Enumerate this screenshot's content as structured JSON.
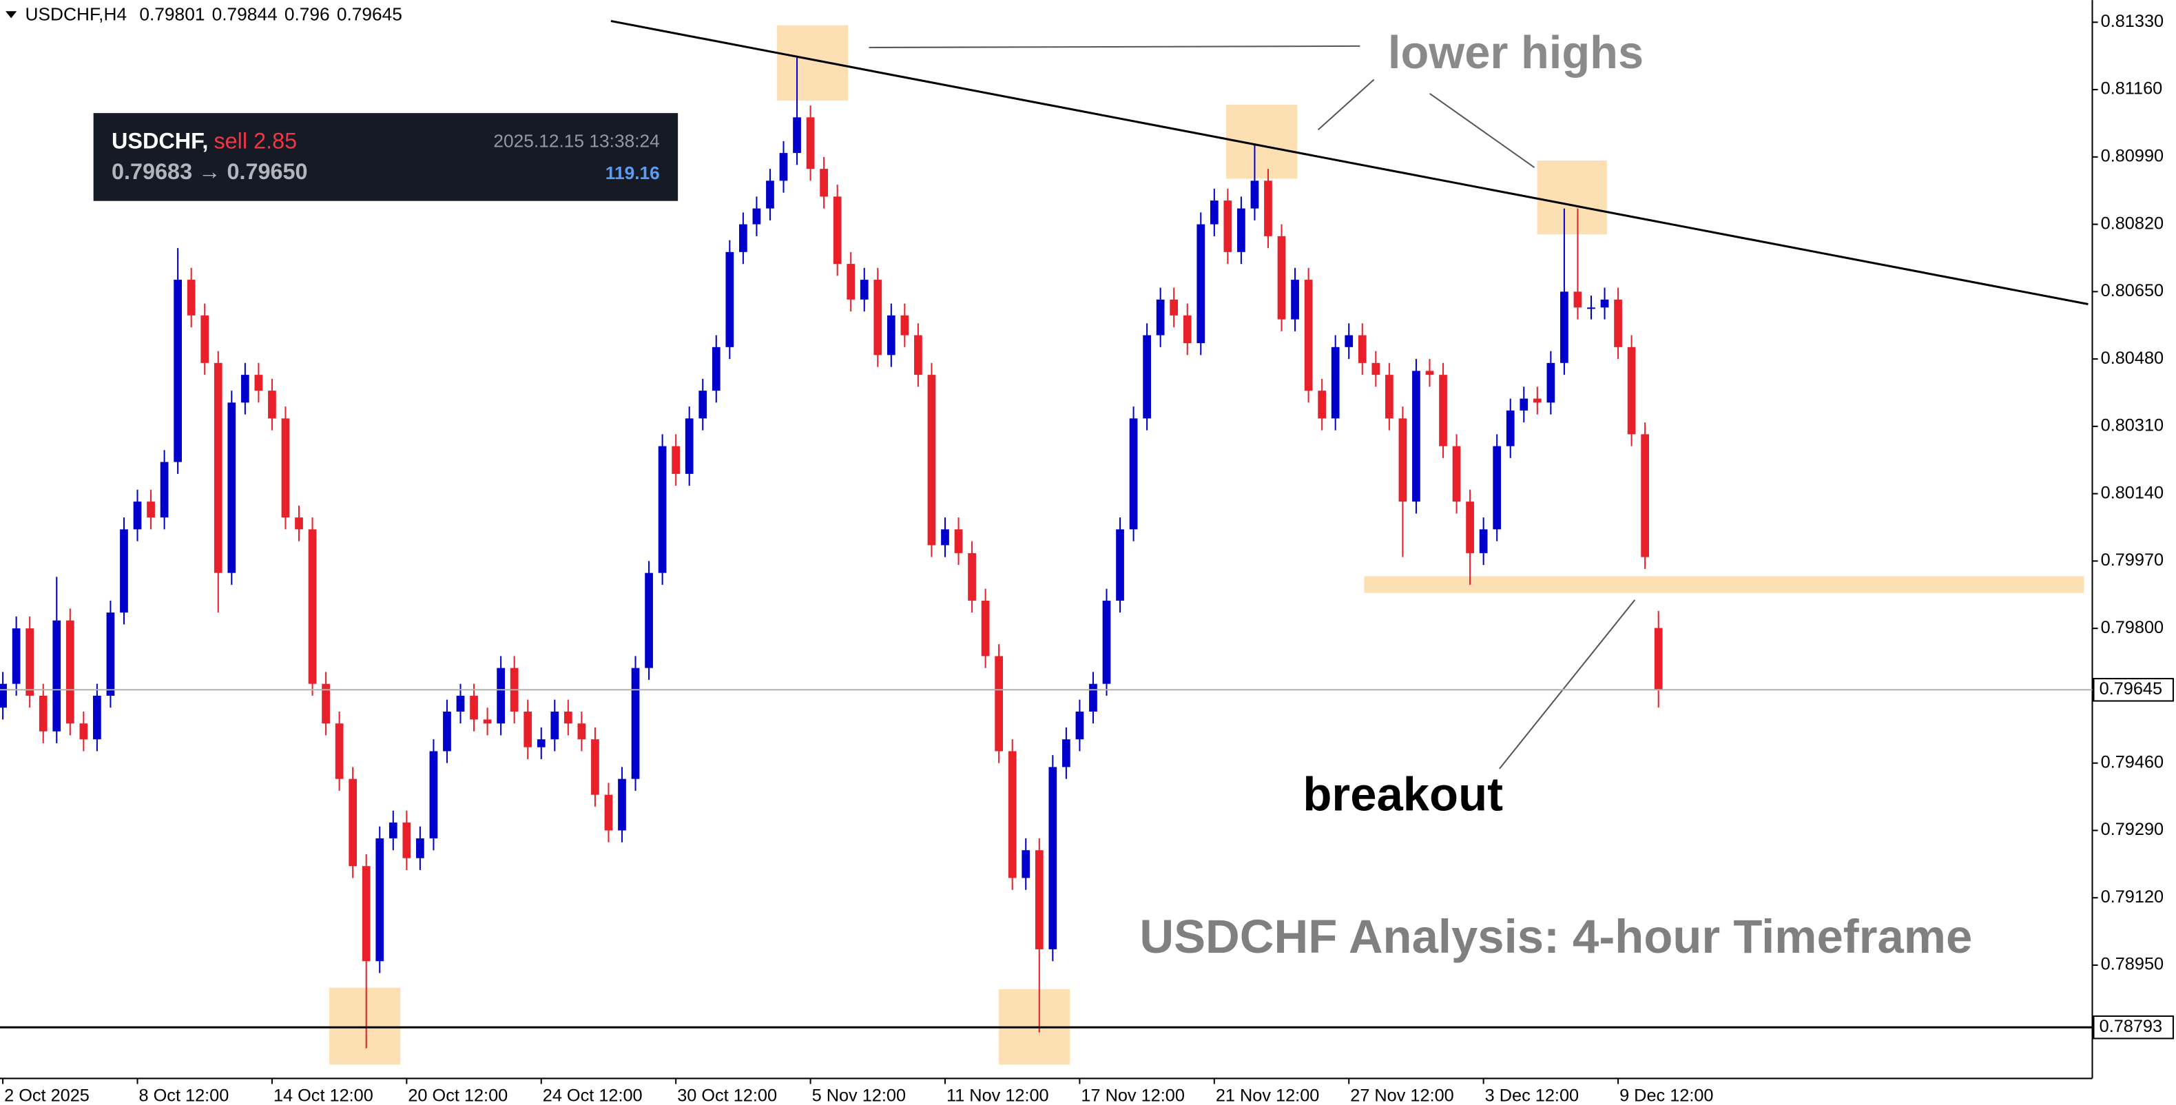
{
  "chart_data": {
    "type": "candlestick",
    "header": {
      "symbol": "USDCHF,H4"
    },
    "trade_panel": {
      "symbol": "USDCHF,",
      "side": "sell 2.85",
      "time": "2025.12.15 13:38:24",
      "prices": "0.79683 → 0.79650",
      "profit": "119.16"
    },
    "annotations": {
      "lower_highs": "lower highs",
      "breakout": "breakout",
      "title": "USDCHF Analysis: 4-hour Timeframe"
    },
    "up_color": "#0000cd",
    "down_color": "#e8202a",
    "support_level": 0.78793,
    "xlim": [
      -0.21,
      155.23
    ],
    "xticks": [
      {
        "value": 0,
        "label": "2 Oct 2025"
      },
      {
        "value": 10,
        "label": "8 Oct 12:00"
      },
      {
        "value": 20,
        "label": "14 Oct 12:00"
      },
      {
        "value": 30,
        "label": "20 Oct 12:00"
      },
      {
        "value": 40,
        "label": "24 Oct 12:00"
      },
      {
        "value": 50,
        "label": "30 Oct 12:00"
      },
      {
        "value": 60,
        "label": "5 Nov 12:00"
      },
      {
        "value": 70,
        "label": "11 Nov 12:00"
      },
      {
        "value": 80,
        "label": "17 Nov 12:00"
      },
      {
        "value": 90,
        "label": "21 Nov 12:00"
      },
      {
        "value": 100,
        "label": "27 Nov 12:00"
      },
      {
        "value": 110,
        "label": "3 Dec 12:00"
      },
      {
        "value": 120,
        "label": "9 Dec 12:00"
      }
    ],
    "ylim": [
      0.78664,
      0.81386
    ],
    "yticks": [
      {
        "value": 0.8133,
        "label": "0.81330"
      },
      {
        "value": 0.8116,
        "label": "0.81160"
      },
      {
        "value": 0.8099,
        "label": "0.80990"
      },
      {
        "value": 0.8082,
        "label": "0.80820"
      },
      {
        "value": 0.8065,
        "label": "0.80650"
      },
      {
        "value": 0.8048,
        "label": "0.80480"
      },
      {
        "value": 0.8031,
        "label": "0.80310"
      },
      {
        "value": 0.8014,
        "label": "0.80140"
      },
      {
        "value": 0.7997,
        "label": "0.79970"
      },
      {
        "value": 0.798,
        "label": "0.79800"
      },
      {
        "value": 0.7946,
        "label": "0.79460"
      },
      {
        "value": 0.7929,
        "label": "0.79290"
      },
      {
        "value": 0.7912,
        "label": "0.79120"
      },
      {
        "value": 0.7895,
        "label": "0.78950"
      }
    ],
    "open": [
      0.796,
      0.7966,
      0.798,
      0.7963,
      0.7954,
      0.7982,
      0.7956,
      0.7952,
      0.7963,
      0.7984,
      0.8005,
      0.8012,
      0.8008,
      0.8022,
      0.8068,
      0.8059,
      0.8047,
      0.7994,
      0.8037,
      0.8044,
      0.804,
      0.8033,
      0.8008,
      0.8005,
      0.7966,
      0.7956,
      0.7942,
      0.792,
      0.7896,
      0.7927,
      0.7931,
      0.7922,
      0.7927,
      0.7949,
      0.7959,
      0.7963,
      0.7957,
      0.7956,
      0.797,
      0.7959,
      0.795,
      0.7952,
      0.7959,
      0.7956,
      0.7952,
      0.7938,
      0.7929,
      0.7942,
      0.797,
      0.7994,
      0.8026,
      0.8019,
      0.8033,
      0.804,
      0.8051,
      0.8075,
      0.8082,
      0.8086,
      0.8093,
      0.81,
      0.8109,
      0.8096,
      0.8089,
      0.8072,
      0.8063,
      0.8068,
      0.8049,
      0.8059,
      0.8054,
      0.8044,
      0.8001,
      0.8005,
      0.7999,
      0.7987,
      0.7973,
      0.7949,
      0.7917,
      0.7924,
      0.7899,
      0.7945,
      0.7952,
      0.7959,
      0.7966,
      0.7987,
      0.8005,
      0.8033,
      0.8054,
      0.8063,
      0.8059,
      0.8052,
      0.8082,
      0.8088,
      0.8075,
      0.8086,
      0.8093,
      0.8079,
      0.8058,
      0.8068,
      0.804,
      0.8033,
      0.8051,
      0.8054,
      0.8047,
      0.8044,
      0.8033,
      0.8012,
      0.8045,
      0.8044,
      0.8026,
      0.8012,
      0.7999,
      0.8005,
      0.8026,
      0.8035,
      0.8038,
      0.8037,
      0.8047,
      0.8065,
      0.8061,
      0.8061,
      0.8063,
      0.8051,
      0.8029,
      0.79801
    ],
    "high": [
      0.7969,
      0.7983,
      0.7983,
      0.7966,
      0.7993,
      0.7985,
      0.7959,
      0.7966,
      0.7987,
      0.8008,
      0.8015,
      0.8015,
      0.8025,
      0.8076,
      0.8071,
      0.8062,
      0.805,
      0.804,
      0.8047,
      0.8047,
      0.8043,
      0.8036,
      0.8011,
      0.8008,
      0.7969,
      0.7959,
      0.7945,
      0.7923,
      0.793,
      0.7934,
      0.7934,
      0.793,
      0.7952,
      0.7962,
      0.7966,
      0.7966,
      0.796,
      0.7973,
      0.7973,
      0.7962,
      0.7955,
      0.7962,
      0.7962,
      0.7959,
      0.7955,
      0.7941,
      0.7945,
      0.7973,
      0.7997,
      0.8029,
      0.8029,
      0.8036,
      0.8043,
      0.8054,
      0.8078,
      0.8085,
      0.8089,
      0.8096,
      0.8103,
      0.8124,
      0.8112,
      0.8099,
      0.8092,
      0.8075,
      0.8071,
      0.8071,
      0.8062,
      0.8062,
      0.8057,
      0.8047,
      0.8008,
      0.8008,
      0.8002,
      0.799,
      0.7976,
      0.7952,
      0.7927,
      0.7927,
      0.7948,
      0.7955,
      0.7962,
      0.7969,
      0.799,
      0.8008,
      0.8036,
      0.8057,
      0.8066,
      0.8066,
      0.8062,
      0.8085,
      0.8091,
      0.8091,
      0.8089,
      0.8102,
      0.8096,
      0.8082,
      0.8071,
      0.8071,
      0.8043,
      0.8054,
      0.8057,
      0.8057,
      0.805,
      0.8047,
      0.8036,
      0.8048,
      0.8048,
      0.8047,
      0.8029,
      0.8015,
      0.8008,
      0.8029,
      0.8038,
      0.8041,
      0.8041,
      0.805,
      0.8086,
      0.8086,
      0.8064,
      0.8066,
      0.8066,
      0.8054,
      0.8032,
      0.79844
    ],
    "low": [
      0.7957,
      0.7963,
      0.796,
      0.7951,
      0.7951,
      0.7953,
      0.7949,
      0.7949,
      0.796,
      0.7981,
      0.8002,
      0.8005,
      0.8005,
      0.8019,
      0.8056,
      0.8044,
      0.7984,
      0.7991,
      0.8034,
      0.8037,
      0.803,
      0.8005,
      0.8002,
      0.7963,
      0.7953,
      0.7939,
      0.7917,
      0.7874,
      0.7893,
      0.7924,
      0.7919,
      0.7919,
      0.7924,
      0.7946,
      0.7956,
      0.7954,
      0.7953,
      0.7953,
      0.7956,
      0.7947,
      0.7947,
      0.7949,
      0.7953,
      0.7949,
      0.7935,
      0.7926,
      0.7926,
      0.7939,
      0.7967,
      0.7991,
      0.8016,
      0.8016,
      0.803,
      0.8037,
      0.8048,
      0.8072,
      0.8079,
      0.8083,
      0.809,
      0.8097,
      0.8093,
      0.8086,
      0.8069,
      0.806,
      0.806,
      0.8046,
      0.8046,
      0.8051,
      0.8041,
      0.7998,
      0.7998,
      0.7996,
      0.7984,
      0.797,
      0.7946,
      0.7914,
      0.7914,
      0.7878,
      0.7896,
      0.7942,
      0.7949,
      0.7956,
      0.7963,
      0.7984,
      0.8002,
      0.803,
      0.8051,
      0.8056,
      0.8049,
      0.8049,
      0.8079,
      0.8072,
      0.8072,
      0.8083,
      0.8076,
      0.8055,
      0.8055,
      0.8037,
      0.803,
      0.803,
      0.8048,
      0.8044,
      0.8041,
      0.803,
      0.7998,
      0.8009,
      0.8041,
      0.8023,
      0.8009,
      0.7991,
      0.7996,
      0.8002,
      0.8023,
      0.8032,
      0.8034,
      0.8034,
      0.8044,
      0.8058,
      0.8058,
      0.8058,
      0.8048,
      0.8026,
      0.7995,
      0.796
    ],
    "close": [
      0.7966,
      0.798,
      0.7963,
      0.7954,
      0.7982,
      0.7956,
      0.7952,
      0.7963,
      0.7984,
      0.8005,
      0.8012,
      0.8008,
      0.8022,
      0.8068,
      0.8059,
      0.8047,
      0.7994,
      0.8037,
      0.8044,
      0.804,
      0.8033,
      0.8008,
      0.8005,
      0.7966,
      0.7956,
      0.7942,
      0.792,
      0.7896,
      0.7927,
      0.7931,
      0.7922,
      0.7927,
      0.7949,
      0.7959,
      0.7963,
      0.7957,
      0.7956,
      0.797,
      0.7959,
      0.795,
      0.7952,
      0.7959,
      0.7956,
      0.7952,
      0.7938,
      0.7929,
      0.7942,
      0.797,
      0.7994,
      0.8026,
      0.8019,
      0.8033,
      0.804,
      0.8051,
      0.8075,
      0.8082,
      0.8086,
      0.8093,
      0.81,
      0.8109,
      0.8096,
      0.8089,
      0.8072,
      0.8063,
      0.8068,
      0.8049,
      0.8059,
      0.8054,
      0.8044,
      0.8001,
      0.8005,
      0.7999,
      0.7987,
      0.7973,
      0.7949,
      0.7917,
      0.7924,
      0.7899,
      0.7945,
      0.7952,
      0.7959,
      0.7966,
      0.7987,
      0.8005,
      0.8033,
      0.8054,
      0.8063,
      0.8059,
      0.8052,
      0.8082,
      0.8088,
      0.8075,
      0.8086,
      0.8093,
      0.8079,
      0.8058,
      0.8068,
      0.804,
      0.8033,
      0.8051,
      0.8054,
      0.8047,
      0.8044,
      0.8033,
      0.8012,
      0.8045,
      0.8044,
      0.8026,
      0.8012,
      0.7999,
      0.8005,
      0.8026,
      0.8035,
      0.8038,
      0.8037,
      0.8047,
      0.8065,
      0.8061,
      0.8061,
      0.8063,
      0.8051,
      0.8029,
      0.7998,
      0.79645
    ]
  }
}
